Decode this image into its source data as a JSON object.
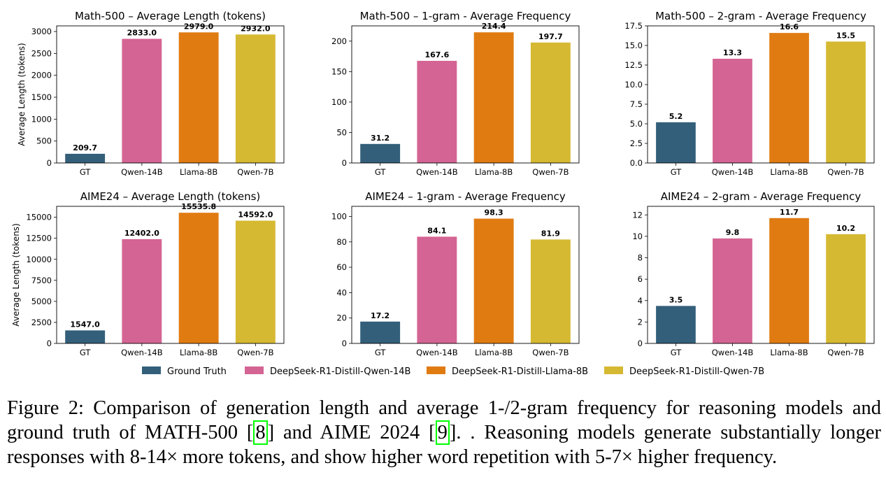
{
  "legend": [
    {
      "label": "Ground Truth",
      "color": "#335f7a"
    },
    {
      "label": "DeepSeek-R1-Distill-Qwen-14B",
      "color": "#d46494"
    },
    {
      "label": "DeepSeek-R1-Distill-Llama-8B",
      "color": "#e07b12"
    },
    {
      "label": "DeepSeek-R1-Distill-Qwen-7B",
      "color": "#d6b932"
    }
  ],
  "chart_data": [
    {
      "type": "bar",
      "title": "Math-500 – Average Length (tokens)",
      "ylabel": "Average Length (tokens)",
      "categories": [
        "GT",
        "Qwen-14B",
        "Llama-8B",
        "Qwen-7B"
      ],
      "values": [
        209.7,
        2833.0,
        2979.0,
        2932.0
      ],
      "value_labels": [
        "209.7",
        "2833.0",
        "2979.0",
        "2932.0"
      ],
      "ylim": [
        0,
        3128
      ],
      "yticks": [
        0,
        500,
        1000,
        1500,
        2000,
        2500,
        3000
      ],
      "ytick_labels": [
        "0",
        "500",
        "1000",
        "1500",
        "2000",
        "2500",
        "3000"
      ]
    },
    {
      "type": "bar",
      "title": "Math-500 – 1-gram - Average Frequency",
      "ylabel": "",
      "categories": [
        "GT",
        "Qwen-14B",
        "Llama-8B",
        "Qwen-7B"
      ],
      "values": [
        31.2,
        167.6,
        214.4,
        197.7
      ],
      "value_labels": [
        "31.2",
        "167.6",
        "214.4",
        "197.7"
      ],
      "ylim": [
        0,
        225
      ],
      "yticks": [
        0,
        50,
        100,
        150,
        200
      ],
      "ytick_labels": [
        "0",
        "50",
        "100",
        "150",
        "200"
      ]
    },
    {
      "type": "bar",
      "title": "Math-500 – 2-gram - Average Frequency",
      "ylabel": "",
      "categories": [
        "GT",
        "Qwen-14B",
        "Llama-8B",
        "Qwen-7B"
      ],
      "values": [
        5.2,
        13.3,
        16.6,
        15.5
      ],
      "value_labels": [
        "5.2",
        "13.3",
        "16.6",
        "15.5"
      ],
      "ylim": [
        0,
        17.5
      ],
      "yticks": [
        0,
        2.5,
        5,
        7.5,
        10,
        12.5,
        15,
        17.5
      ],
      "ytick_labels": [
        "0.0",
        "2.5",
        "5.0",
        "7.5",
        "10.0",
        "12.5",
        "15.0",
        "17.5"
      ]
    },
    {
      "type": "bar",
      "title": "AIME24 – Average Length (tokens)",
      "ylabel": "Average Length (tokens)",
      "categories": [
        "GT",
        "Qwen-14B",
        "Llama-8B",
        "Qwen-7B"
      ],
      "values": [
        1547.0,
        12402.0,
        15535.8,
        14592.0
      ],
      "value_labels": [
        "1547.0",
        "12402.0",
        "15535.8",
        "14592.0"
      ],
      "ylim": [
        0,
        16300
      ],
      "yticks": [
        0,
        2500,
        5000,
        7500,
        10000,
        12500,
        15000
      ],
      "ytick_labels": [
        "0",
        "2500",
        "5000",
        "7500",
        "10000",
        "12500",
        "15000"
      ]
    },
    {
      "type": "bar",
      "title": "AIME24 – 1-gram - Average Frequency",
      "ylabel": "",
      "categories": [
        "GT",
        "Qwen-14B",
        "Llama-8B",
        "Qwen-7B"
      ],
      "values": [
        17.2,
        84.1,
        98.3,
        81.9
      ],
      "value_labels": [
        "17.2",
        "84.1",
        "98.3",
        "81.9"
      ],
      "ylim": [
        0,
        108
      ],
      "yticks": [
        0,
        20,
        40,
        60,
        80,
        100
      ],
      "ytick_labels": [
        "0",
        "20",
        "40",
        "60",
        "80",
        "100"
      ]
    },
    {
      "type": "bar",
      "title": "AIME24 – 2-gram - Average Frequency",
      "ylabel": "",
      "categories": [
        "GT",
        "Qwen-14B",
        "Llama-8B",
        "Qwen-7B"
      ],
      "values": [
        3.5,
        9.8,
        11.7,
        10.2
      ],
      "value_labels": [
        "3.5",
        "9.8",
        "11.7",
        "10.2"
      ],
      "ylim": [
        0,
        12.8
      ],
      "yticks": [
        0,
        2,
        4,
        6,
        8,
        10,
        12
      ],
      "ytick_labels": [
        "0",
        "2",
        "4",
        "6",
        "8",
        "10",
        "12"
      ]
    }
  ],
  "caption": {
    "text_1": "Figure 2: Comparison of generation length and average 1-/2-gram frequency for reasoning models and ground truth of MATH-500 [",
    "ref_1": "8",
    "text_2": "] and AIME 2024 [",
    "ref_2": "9",
    "text_3": "]. . Reasoning models generate substantially longer responses with 8-14× more tokens, and show higher word repetition with 5-7× higher frequency."
  }
}
